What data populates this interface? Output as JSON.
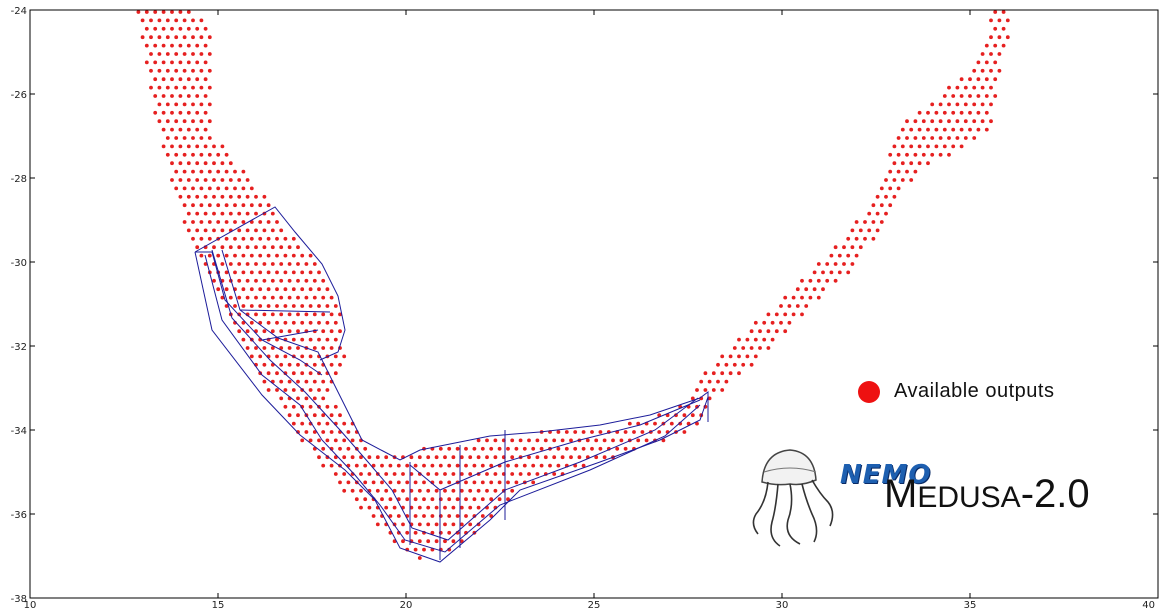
{
  "axes": {
    "x_ticks": [
      "10",
      "15",
      "20",
      "25",
      "30",
      "35",
      "40"
    ],
    "y_ticks": [
      "-24",
      "-26",
      "-28",
      "-30",
      "-32",
      "-34",
      "-36",
      "-38"
    ],
    "xlim": [
      10,
      40
    ],
    "ylim": [
      -38,
      -24
    ]
  },
  "legend": {
    "label": "Available outputs",
    "marker_color": "#ee1111"
  },
  "logo": {
    "emblem_word": "NEMO",
    "title_initial": "M",
    "title_rest": "EDUSA",
    "title_version": "-2.0",
    "icon": "jellyfish-icon"
  },
  "colors": {
    "points": "#e62020",
    "boxes": "#1c1c9a",
    "frame": "#000000"
  }
}
